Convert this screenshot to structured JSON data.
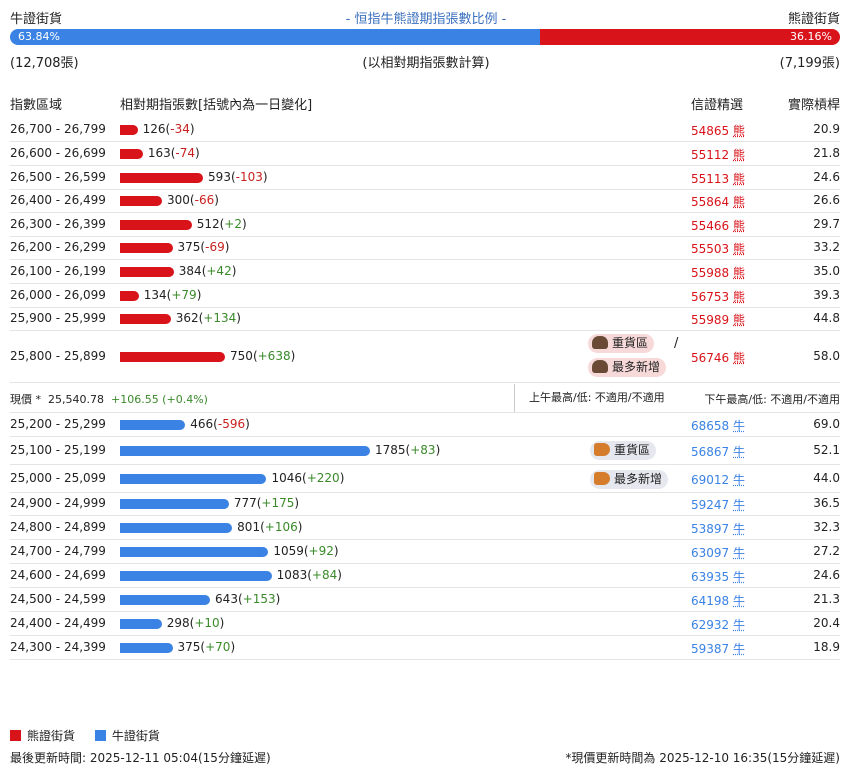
{
  "header": {
    "bull_label": "牛證街貨",
    "bear_label": "熊證街貨",
    "title": "- 恒指牛熊證期指張數比例 -"
  },
  "ratio": {
    "bull_percent": 63.84,
    "bear_percent": 36.16,
    "bull_text": "63.84%",
    "bear_text": "36.16%",
    "bull_count": "(12,708張)",
    "bear_count": "(7,199張)",
    "note": "(以相對期指張數計算)"
  },
  "columns": {
    "range": "指數區域",
    "contracts": "相對期指張數[括號內為一日變化]",
    "top_warrant": "信證精選",
    "leverage": "實際槓桿"
  },
  "bear_rows": [
    {
      "range": "26,700 - 26,799",
      "count": 126,
      "count_text": "126",
      "change": "-34",
      "code": "54865",
      "dir": "熊",
      "lev": "20.9"
    },
    {
      "range": "26,600 - 26,699",
      "count": 163,
      "count_text": "163",
      "change": "-74",
      "code": "55112",
      "dir": "熊",
      "lev": "21.8"
    },
    {
      "range": "26,500 - 26,599",
      "count": 593,
      "count_text": "593",
      "change": "-103",
      "code": "55113",
      "dir": "熊",
      "lev": "24.6"
    },
    {
      "range": "26,400 - 26,499",
      "count": 300,
      "count_text": "300",
      "change": "-66",
      "code": "55864",
      "dir": "熊",
      "lev": "26.6"
    },
    {
      "range": "26,300 - 26,399",
      "count": 512,
      "count_text": "512",
      "change": "+2",
      "code": "55466",
      "dir": "熊",
      "lev": "29.7"
    },
    {
      "range": "26,200 - 26,299",
      "count": 375,
      "count_text": "375",
      "change": "-69",
      "code": "55503",
      "dir": "熊",
      "lev": "33.2"
    },
    {
      "range": "26,100 - 26,199",
      "count": 384,
      "count_text": "384",
      "change": "+42",
      "code": "55988",
      "dir": "熊",
      "lev": "35.0"
    },
    {
      "range": "26,000 - 26,099",
      "count": 134,
      "count_text": "134",
      "change": "+79",
      "code": "56753",
      "dir": "熊",
      "lev": "39.3"
    },
    {
      "range": "25,900 - 25,999",
      "count": 362,
      "count_text": "362",
      "change": "+134",
      "code": "55989",
      "dir": "熊",
      "lev": "44.8"
    },
    {
      "range": "25,800 - 25,899",
      "count": 750,
      "count_text": "750",
      "change": "+638",
      "code": "56746",
      "dir": "熊",
      "lev": "58.0"
    }
  ],
  "bear_badges": {
    "heavy": "重貨區",
    "most_new": "最多新增",
    "slash": "/"
  },
  "price": {
    "label": "現價 *",
    "value": "25,540.78",
    "change": "+106.55 (+0.4%)",
    "am": "上午最高/低: 不適用/不適用",
    "pm": "下午最高/低: 不適用/不適用"
  },
  "bull_rows": [
    {
      "range": "25,200 - 25,299",
      "count": 466,
      "count_text": "466",
      "change": "-596",
      "code": "68658",
      "dir": "牛",
      "lev": "69.0"
    },
    {
      "range": "25,100 - 25,199",
      "count": 1785,
      "count_text": "1785",
      "change": "+83",
      "code": "56867",
      "dir": "牛",
      "lev": "52.1"
    },
    {
      "range": "25,000 - 25,099",
      "count": 1046,
      "count_text": "1046",
      "change": "+220",
      "code": "69012",
      "dir": "牛",
      "lev": "44.0"
    },
    {
      "range": "24,900 - 24,999",
      "count": 777,
      "count_text": "777",
      "change": "+175",
      "code": "59247",
      "dir": "牛",
      "lev": "36.5"
    },
    {
      "range": "24,800 - 24,899",
      "count": 801,
      "count_text": "801",
      "change": "+106",
      "code": "53897",
      "dir": "牛",
      "lev": "32.3"
    },
    {
      "range": "24,700 - 24,799",
      "count": 1059,
      "count_text": "1059",
      "change": "+92",
      "code": "63097",
      "dir": "牛",
      "lev": "27.2"
    },
    {
      "range": "24,600 - 24,699",
      "count": 1083,
      "count_text": "1083",
      "change": "+84",
      "code": "63935",
      "dir": "牛",
      "lev": "24.6"
    },
    {
      "range": "24,500 - 24,599",
      "count": 643,
      "count_text": "643",
      "change": "+153",
      "code": "64198",
      "dir": "牛",
      "lev": "21.3"
    },
    {
      "range": "24,400 - 24,499",
      "count": 298,
      "count_text": "298",
      "change": "+10",
      "code": "62932",
      "dir": "牛",
      "lev": "20.4"
    },
    {
      "range": "24,300 - 24,399",
      "count": 375,
      "count_text": "375",
      "change": "+70",
      "code": "59387",
      "dir": "牛",
      "lev": "18.9"
    }
  ],
  "bull_badges": {
    "heavy": "重貨區",
    "most_new": "最多新增"
  },
  "legend": {
    "bear": "熊證街貨",
    "bull": "牛證街貨"
  },
  "footer": {
    "last_update": "最後更新時間: 2025-12-11 05:04(15分鐘延遲)",
    "price_update": "*現價更新時間為 2025-12-10 16:35(15分鐘延遲)"
  },
  "colors": {
    "bear": "#d9131a",
    "bull": "#3a82e4"
  }
}
